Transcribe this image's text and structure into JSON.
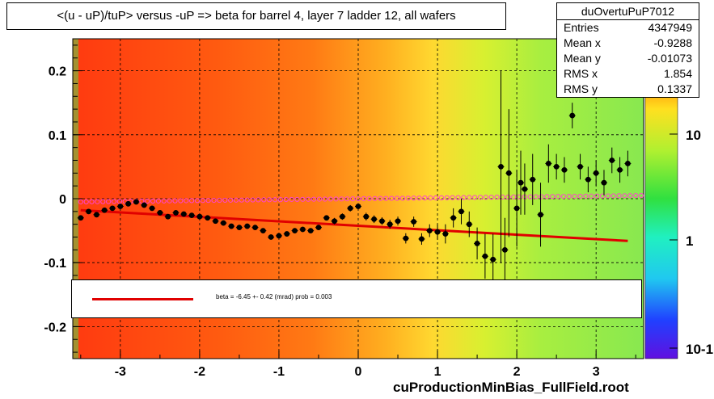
{
  "title": "<(u - uP)/tuP> versus  -uP => beta for barrel 4, layer 7 ladder 12, all wafers",
  "stats": {
    "name": "duOvertuPuP7012",
    "rows": [
      {
        "key": "Entries",
        "value": "4347949"
      },
      {
        "key": "Mean x",
        "value": "-0.9288"
      },
      {
        "key": "Mean y",
        "value": "-0.01073"
      },
      {
        "key": "RMS x",
        "value": "1.854"
      },
      {
        "key": "RMS y",
        "value": "0.1337"
      }
    ]
  },
  "legend_text": "beta =   -6.45 +-  0.42 (mrad) prob = 0.003",
  "footer": "cuProductionMinBias_FullField.root",
  "colors": {
    "fit_line": "#e00000",
    "points": "#000000",
    "open_markers": "#ff44cc"
  },
  "chart_data": {
    "type": "heatmap",
    "xlim": [
      -3.6,
      3.6
    ],
    "ylim": [
      -0.25,
      0.25
    ],
    "x_ticks": [
      "-3",
      "-2",
      "-1",
      "0",
      "1",
      "2",
      "3"
    ],
    "x_tick_values": [
      -3,
      -2,
      -1,
      0,
      1,
      2,
      3
    ],
    "y_ticks": [
      "0.2",
      "0.1",
      "0",
      "-0.1",
      "-0.2"
    ],
    "y_tick_values": [
      0.2,
      0.1,
      0,
      -0.1,
      -0.2
    ],
    "z_scale": "log",
    "z_ticks": [
      "10",
      "1",
      "10-1"
    ],
    "grid": true,
    "profile_points": {
      "x": [
        -3.5,
        -3.4,
        -3.3,
        -3.2,
        -3.1,
        -3.0,
        -2.9,
        -2.8,
        -2.7,
        -2.6,
        -2.5,
        -2.4,
        -2.3,
        -2.2,
        -2.1,
        -2.0,
        -1.9,
        -1.8,
        -1.7,
        -1.6,
        -1.5,
        -1.4,
        -1.3,
        -1.2,
        -1.1,
        -1.0,
        -0.9,
        -0.8,
        -0.7,
        -0.6,
        -0.5,
        -0.4,
        -0.3,
        -0.2,
        -0.1,
        0.0,
        0.1,
        0.2,
        0.3,
        0.4,
        0.5,
        0.6,
        0.7,
        0.8,
        0.9,
        1.0,
        1.1,
        1.2,
        1.3,
        1.4,
        1.5,
        1.6,
        1.7,
        1.8,
        1.85,
        1.9,
        2.0,
        2.05,
        2.1,
        2.2,
        2.3,
        2.4,
        2.5,
        2.6,
        2.7,
        2.8,
        2.9,
        3.0,
        3.1,
        3.2,
        3.3,
        3.4
      ],
      "y": [
        -0.03,
        -0.02,
        -0.025,
        -0.018,
        -0.015,
        -0.012,
        -0.008,
        -0.005,
        -0.01,
        -0.015,
        -0.022,
        -0.028,
        -0.022,
        -0.024,
        -0.026,
        -0.028,
        -0.03,
        -0.035,
        -0.038,
        -0.043,
        -0.045,
        -0.043,
        -0.045,
        -0.05,
        -0.06,
        -0.058,
        -0.055,
        -0.05,
        -0.048,
        -0.05,
        -0.045,
        -0.03,
        -0.035,
        -0.028,
        -0.015,
        -0.012,
        -0.028,
        -0.032,
        -0.035,
        -0.04,
        -0.035,
        -0.062,
        -0.036,
        -0.063,
        -0.05,
        -0.052,
        -0.055,
        -0.03,
        -0.02,
        -0.04,
        -0.07,
        -0.09,
        -0.095,
        0.05,
        -0.08,
        0.04,
        -0.015,
        0.025,
        0.015,
        0.03,
        -0.025,
        0.055,
        0.05,
        0.045,
        0.13,
        0.05,
        0.03,
        0.04,
        0.025,
        0.06,
        0.045,
        0.055
      ],
      "yerr": [
        0.003,
        0.003,
        0.003,
        0.003,
        0.003,
        0.003,
        0.003,
        0.003,
        0.003,
        0.003,
        0.003,
        0.003,
        0.003,
        0.003,
        0.003,
        0.003,
        0.003,
        0.003,
        0.003,
        0.003,
        0.003,
        0.003,
        0.003,
        0.003,
        0.004,
        0.004,
        0.004,
        0.004,
        0.004,
        0.004,
        0.004,
        0.004,
        0.005,
        0.005,
        0.005,
        0.005,
        0.006,
        0.006,
        0.006,
        0.007,
        0.007,
        0.008,
        0.008,
        0.009,
        0.01,
        0.012,
        0.015,
        0.015,
        0.02,
        0.02,
        0.025,
        0.035,
        0.04,
        0.15,
        0.05,
        0.1,
        0.06,
        0.05,
        0.04,
        0.04,
        0.05,
        0.03,
        0.02,
        0.02,
        0.02,
        0.02,
        0.02,
        0.02,
        0.02,
        0.02,
        0.02,
        0.02
      ]
    },
    "open_markers": {
      "x_start": -3.5,
      "x_end": 3.6,
      "step": 0.07,
      "y_start": -0.005,
      "y_end": 0.005
    },
    "fit_line": {
      "x": [
        -3.5,
        3.4
      ],
      "y": [
        -0.018,
        -0.066
      ]
    }
  }
}
